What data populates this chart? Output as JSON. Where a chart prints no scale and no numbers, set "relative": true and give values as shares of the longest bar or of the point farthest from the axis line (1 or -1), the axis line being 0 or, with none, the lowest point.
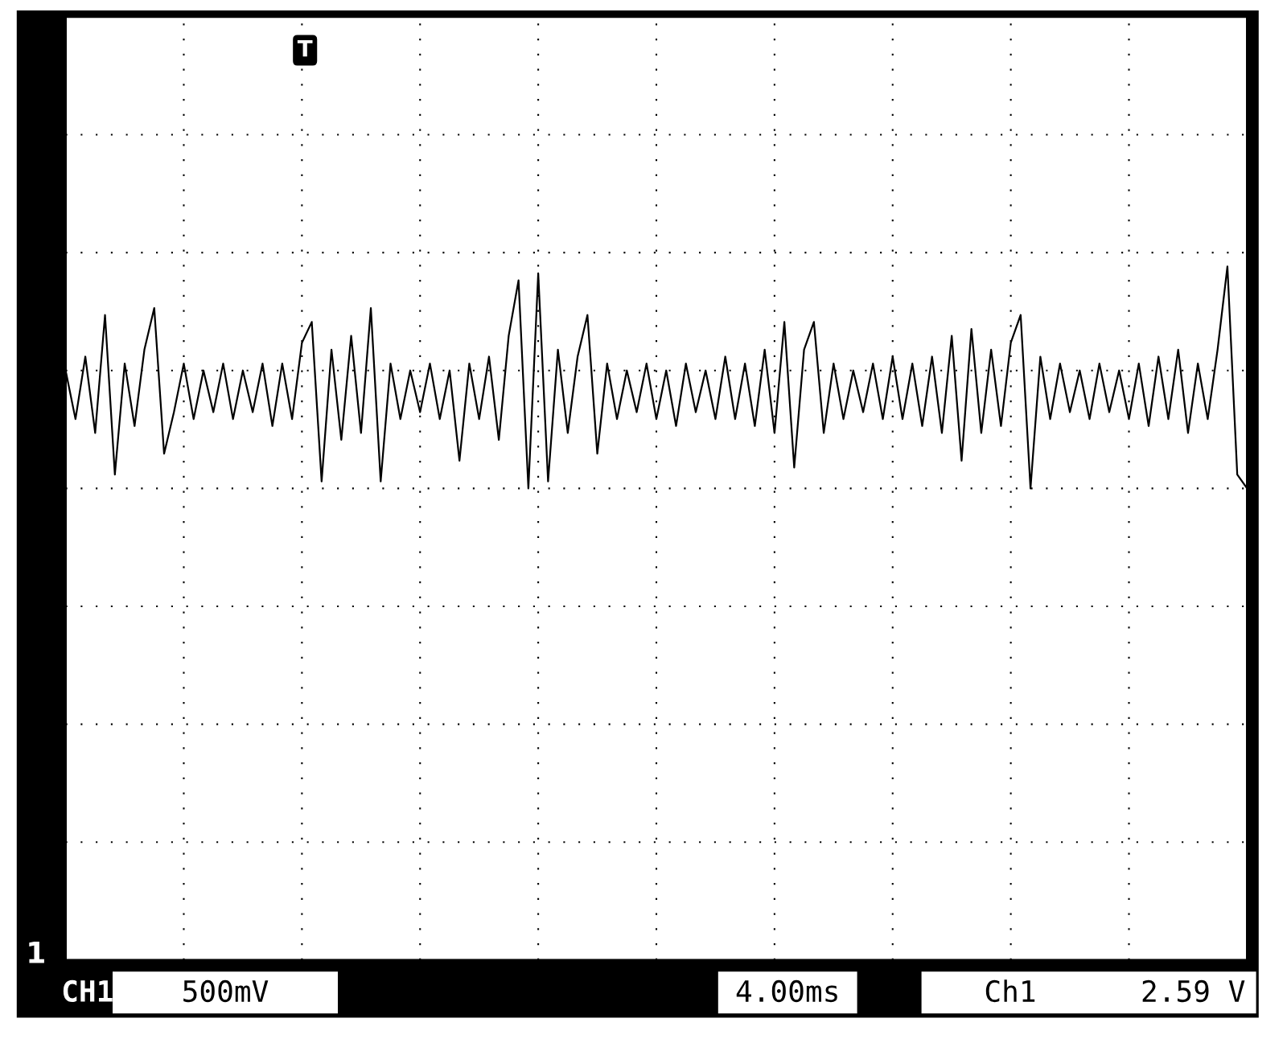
{
  "chart_data": {
    "type": "line",
    "relative": true,
    "grid": true,
    "categories": [
      null,
      null,
      null,
      null,
      null,
      null,
      null,
      null,
      null,
      null,
      null,
      null,
      null,
      null,
      null,
      null,
      null,
      null,
      null,
      null,
      null,
      null,
      null,
      null,
      null,
      null,
      null,
      null,
      null,
      null,
      null,
      null,
      null,
      null,
      null,
      null,
      null,
      null,
      null,
      null,
      null,
      null,
      null,
      null,
      null,
      null,
      null,
      null,
      null,
      null,
      null,
      null,
      null,
      null,
      null,
      null,
      null,
      null,
      null,
      null,
      null,
      null,
      null,
      null,
      null,
      null,
      null,
      null,
      null,
      null,
      null,
      null,
      null,
      null,
      null,
      null,
      null,
      null,
      null,
      null,
      null,
      null,
      null,
      null,
      null,
      null,
      null,
      null,
      null,
      null,
      null,
      null,
      null,
      null,
      null,
      null,
      null,
      null,
      null,
      null,
      null,
      null,
      null,
      null,
      null,
      null,
      null,
      null,
      null,
      null,
      null,
      null,
      null,
      null,
      null,
      null,
      null,
      null,
      null,
      null,
      null
    ],
    "series": [
      {
        "color": "#000000",
        "values": [
          0.85,
          0.78,
          0.87,
          0.76,
          0.93,
          0.7,
          0.86,
          0.77,
          0.88,
          0.94,
          0.73,
          0.79,
          0.86,
          0.78,
          0.85,
          0.79,
          0.86,
          0.78,
          0.85,
          0.79,
          0.86,
          0.77,
          0.86,
          0.78,
          0.89,
          0.92,
          0.69,
          0.88,
          0.75,
          0.9,
          0.76,
          0.94,
          0.69,
          0.86,
          0.78,
          0.85,
          0.79,
          0.86,
          0.78,
          0.85,
          0.72,
          0.86,
          0.78,
          0.87,
          0.75,
          0.9,
          0.98,
          0.68,
          0.99,
          0.69,
          0.88,
          0.76,
          0.87,
          0.93,
          0.73,
          0.86,
          0.78,
          0.85,
          0.79,
          0.86,
          0.78,
          0.85,
          0.77,
          0.86,
          0.79,
          0.85,
          0.78,
          0.87,
          0.78,
          0.86,
          0.77,
          0.88,
          0.76,
          0.92,
          0.71,
          0.88,
          0.92,
          0.76,
          0.86,
          0.78,
          0.85,
          0.79,
          0.86,
          0.78,
          0.87,
          0.78,
          0.86,
          0.77,
          0.87,
          0.76,
          0.9,
          0.72,
          0.91,
          0.76,
          0.88,
          0.77,
          0.89,
          0.93,
          0.68,
          0.87,
          0.78,
          0.86,
          0.79,
          0.85,
          0.78,
          0.86,
          0.79,
          0.85,
          0.78,
          0.86,
          0.77,
          0.87,
          0.78,
          0.88,
          0.76,
          0.86,
          0.78,
          0.88,
          1.0,
          0.7,
          0.68
        ]
      }
    ],
    "annotations": [
      "1",
      "T",
      "CH1",
      "500mV",
      "4.00ms",
      "Ch1",
      "2.59 V"
    ]
  }
}
